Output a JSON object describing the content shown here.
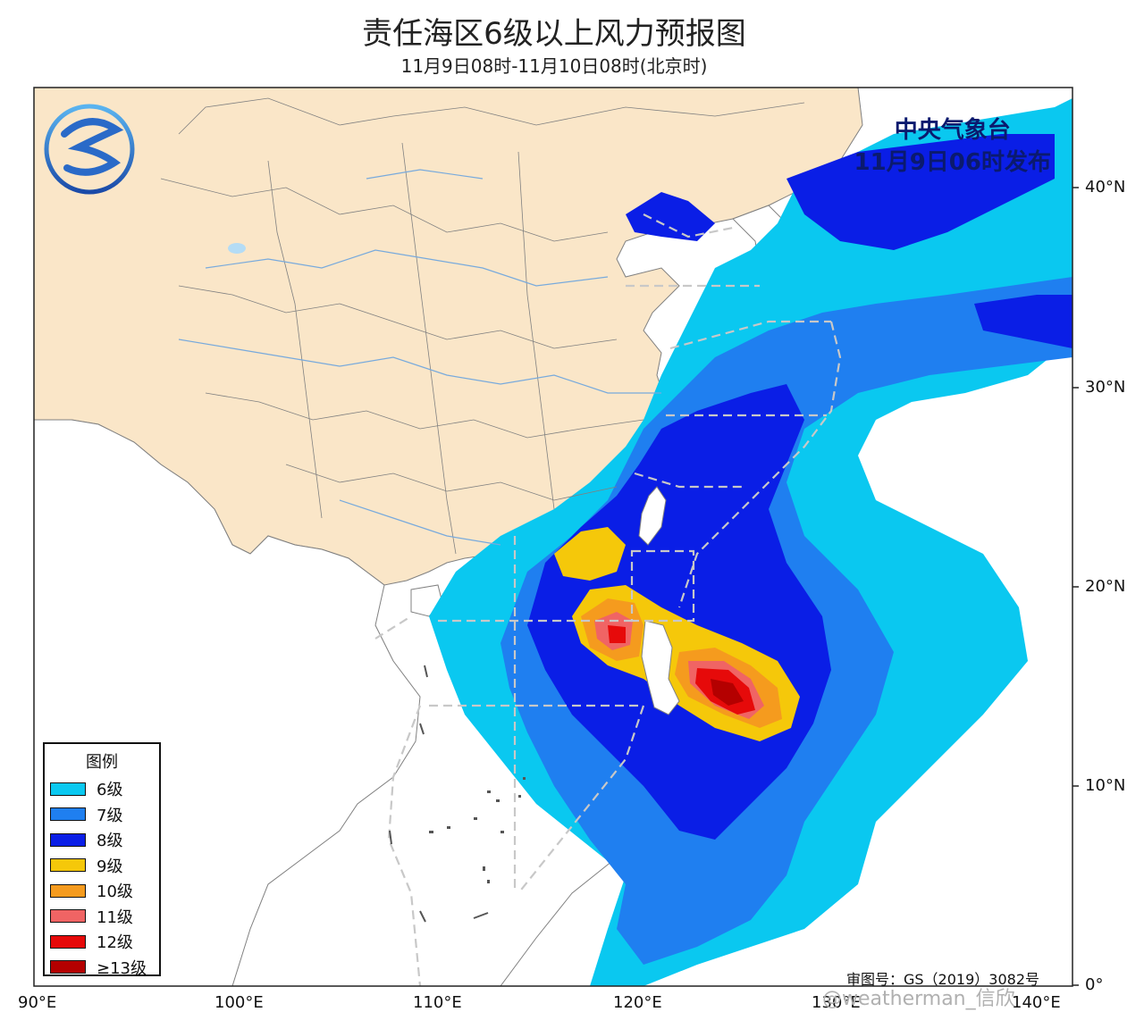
{
  "title": "责任海区6级以上风力预报图",
  "subtitle": "11月9日08时-11月10日08时(北京时)",
  "issuer": {
    "agency": "中央气象台",
    "issue_time": "11月9日06时发布"
  },
  "approval_number": "审图号：GS（2019）3082号",
  "watermark": "@weatherman_信欣",
  "legend": {
    "title": "图例",
    "items": [
      {
        "label": "6级",
        "color": "#0ac8f0"
      },
      {
        "label": "7级",
        "color": "#1f7ff0"
      },
      {
        "label": "8级",
        "color": "#0a1ee6"
      },
      {
        "label": "9级",
        "color": "#f5c80a"
      },
      {
        "label": "10级",
        "color": "#f59b1e"
      },
      {
        "label": "11级",
        "color": "#f06464"
      },
      {
        "label": "12级",
        "color": "#e60a0a"
      },
      {
        "label": "≥13级",
        "color": "#b40000"
      }
    ]
  },
  "lat_labels": [
    "40°N",
    "30°N",
    "20°N",
    "10°N",
    "0°"
  ],
  "lon_labels": [
    "90°E",
    "100°E",
    "110°E",
    "120°E",
    "130°E",
    "140°E"
  ],
  "colors": {
    "land_china": "#fae6c8",
    "land_other": "#ffffff",
    "sea": "#ffffff",
    "boundary": "#808080",
    "river": "#78aadc",
    "dashed_zone": "#c8c8c8"
  },
  "icons": {
    "logo": "cma-logo-icon"
  }
}
